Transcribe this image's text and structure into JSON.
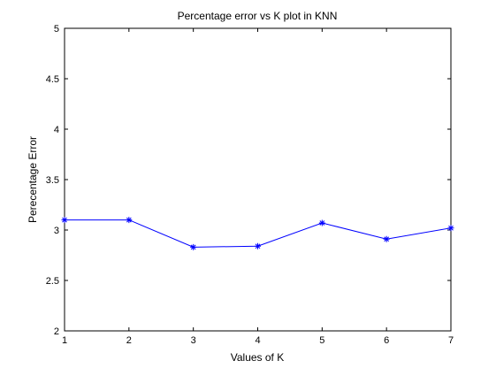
{
  "chart_data": {
    "type": "line",
    "title": "Percentage error vs K plot in KNN",
    "xlabel": "Values of K",
    "ylabel": "Perecentage Error",
    "x": [
      1,
      2,
      3,
      4,
      5,
      6,
      7
    ],
    "series": [
      {
        "values": [
          3.1,
          3.1,
          2.83,
          2.84,
          3.07,
          2.91,
          3.02
        ]
      }
    ],
    "xlim": [
      1,
      7
    ],
    "ylim": [
      2,
      5
    ],
    "xticks": [
      1,
      2,
      3,
      4,
      5,
      6,
      7
    ],
    "yticks": [
      2,
      2.5,
      3,
      3.5,
      4,
      4.5,
      5
    ],
    "xtick_labels": [
      "1",
      "2",
      "3",
      "4",
      "5",
      "6",
      "7"
    ],
    "ytick_labels": [
      "2",
      "2.5",
      "3",
      "3.5",
      "4",
      "4.5",
      "5"
    ],
    "marker": "asterisk",
    "line_color": "#0000ff",
    "grid": false,
    "legend": "none"
  }
}
